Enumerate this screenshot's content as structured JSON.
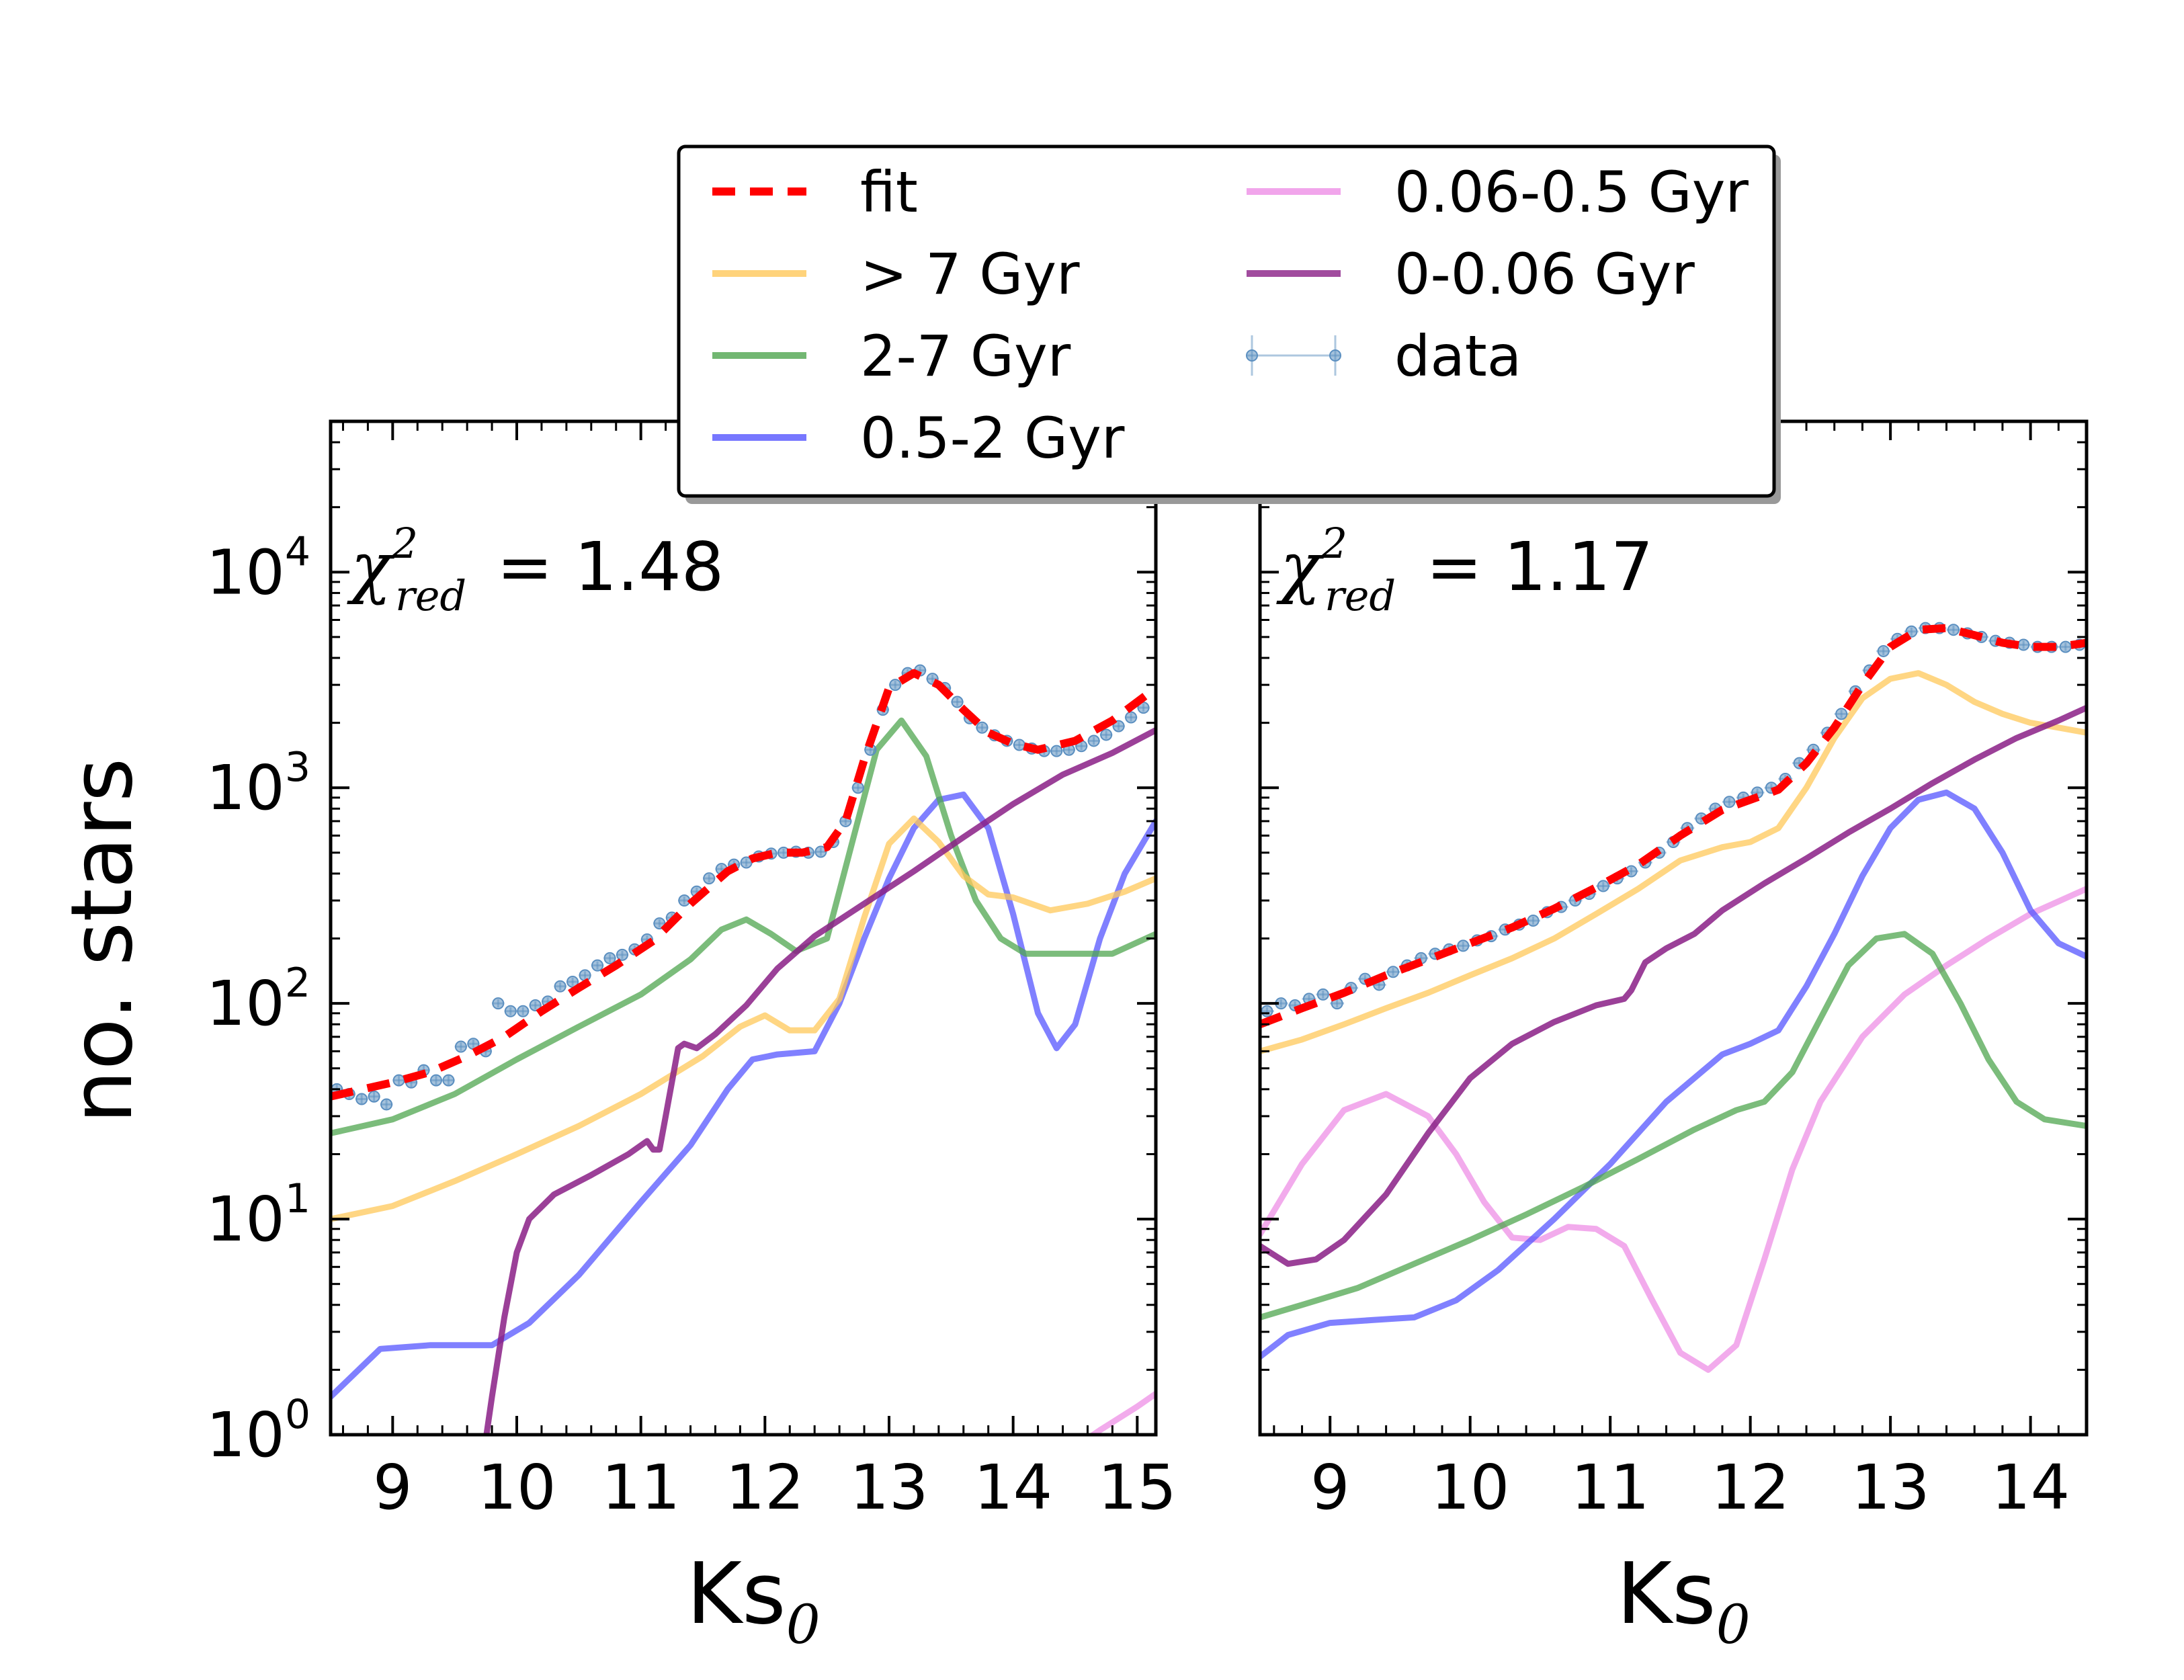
{
  "figure": {
    "ylabel": "no. stars",
    "legend_placement": "top-center, overlapping both panels"
  },
  "legend": [
    {
      "key": "fit",
      "label": "fit",
      "color": "#ff0000",
      "style": "dashed"
    },
    {
      "key": "gt7",
      "label": "> 7 Gyr",
      "color": "#ffc85a",
      "style": "solid"
    },
    {
      "key": "g2_7",
      "label": "2-7 Gyr",
      "color": "#4fa54f",
      "style": "solid"
    },
    {
      "key": "g05_2",
      "label": "0.5-2 Gyr",
      "color": "#5555ff",
      "style": "solid"
    },
    {
      "key": "g006_05",
      "label": "0.06-0.5 Gyr",
      "color": "#ee8fe6",
      "style": "solid"
    },
    {
      "key": "g0_006",
      "label": "0-0.06 Gyr",
      "color": "#8a1f86",
      "style": "solid"
    },
    {
      "key": "data",
      "label": "data",
      "color": "#5b8fc0",
      "style": "errorbar"
    }
  ],
  "chart_data": [
    {
      "type": "line",
      "panel": "left",
      "xlabel": "Ks",
      "xlabel_sub": "0",
      "ylabel": "no. stars",
      "yscale": "log",
      "xlim": [
        8.5,
        15.15
      ],
      "ylim": [
        1,
        50000
      ],
      "xticks": [
        9,
        10,
        11,
        12,
        13,
        14,
        15
      ],
      "yticks": [
        {
          "value": 1,
          "base": "10",
          "exp": "0"
        },
        {
          "value": 10,
          "base": "10",
          "exp": "1"
        },
        {
          "value": 100,
          "base": "10",
          "exp": "2"
        },
        {
          "value": 1000,
          "base": "10",
          "exp": "3"
        },
        {
          "value": 10000,
          "base": "10",
          "exp": "4"
        }
      ],
      "annotation": {
        "symbol": "χ",
        "sup": "2",
        "sub": "red",
        "text": "=  1.48"
      },
      "series": [
        {
          "key": "fit",
          "x": [
            8.5,
            9.0,
            9.3,
            9.6,
            9.9,
            10.2,
            10.5,
            10.8,
            11.1,
            11.4,
            11.7,
            11.9,
            12.1,
            12.3,
            12.5,
            12.65,
            12.8,
            13.0,
            13.2,
            13.4,
            13.6,
            13.8,
            14.0,
            14.2,
            14.5,
            14.8,
            15.15
          ],
          "y": [
            37,
            43,
            48,
            57,
            70,
            92,
            118,
            150,
            195,
            290,
            410,
            470,
            500,
            500,
            530,
            700,
            1350,
            2900,
            3400,
            3000,
            2300,
            1800,
            1600,
            1500,
            1650,
            2050,
            2900
          ]
        },
        {
          "key": "gt7",
          "x": [
            8.5,
            9.0,
            9.5,
            10.0,
            10.5,
            11.0,
            11.5,
            11.8,
            12.0,
            12.2,
            12.4,
            12.6,
            12.8,
            13.0,
            13.2,
            13.4,
            13.6,
            13.8,
            14.0,
            14.3,
            14.6,
            14.9,
            15.15
          ],
          "y": [
            10,
            11.5,
            15,
            20,
            27,
            38,
            57,
            78,
            88,
            75,
            75,
            105,
            250,
            550,
            720,
            560,
            390,
            320,
            310,
            270,
            290,
            330,
            380
          ]
        },
        {
          "key": "g2_7",
          "x": [
            8.5,
            9.0,
            9.5,
            10.0,
            10.5,
            11.0,
            11.4,
            11.65,
            11.85,
            12.05,
            12.25,
            12.5,
            12.7,
            12.9,
            13.1,
            13.3,
            13.5,
            13.7,
            13.9,
            14.1,
            14.4,
            14.8,
            15.15
          ],
          "y": [
            25,
            29,
            38,
            55,
            78,
            110,
            160,
            220,
            245,
            210,
            175,
            200,
            550,
            1500,
            2050,
            1400,
            600,
            300,
            200,
            170,
            170,
            170,
            210
          ]
        },
        {
          "key": "g05_2",
          "x": [
            8.5,
            8.9,
            9.3,
            9.8,
            10.1,
            10.5,
            11.0,
            11.4,
            11.7,
            11.9,
            12.1,
            12.4,
            12.6,
            12.8,
            13.0,
            13.2,
            13.4,
            13.6,
            13.8,
            14.0,
            14.2,
            14.35,
            14.5,
            14.7,
            14.9,
            15.15
          ],
          "y": [
            1.5,
            2.5,
            2.6,
            2.6,
            3.3,
            5.5,
            12,
            22,
            40,
            55,
            58,
            60,
            100,
            200,
            380,
            650,
            880,
            930,
            650,
            260,
            90,
            62,
            80,
            200,
            400,
            700
          ]
        },
        {
          "key": "g006_05",
          "x": [
            14.4,
            14.7,
            15.0,
            15.15
          ],
          "y": [
            0.8,
            1.05,
            1.35,
            1.55
          ]
        },
        {
          "key": "g0_006",
          "x": [
            9.7,
            9.8,
            9.9,
            10.0,
            10.1,
            10.3,
            10.6,
            10.9,
            11.05,
            11.1,
            11.15,
            11.2,
            11.3,
            11.35,
            11.45,
            11.6,
            11.85,
            12.1,
            12.4,
            12.8,
            13.2,
            13.6,
            14.0,
            14.4,
            14.8,
            15.15
          ],
          "y": [
            0.6,
            1.5,
            3.5,
            7,
            10,
            13,
            16,
            20,
            23,
            21,
            21,
            30,
            62,
            65,
            62,
            72,
            98,
            145,
            205,
            290,
            410,
            590,
            840,
            1150,
            1450,
            1850
          ]
        },
        {
          "key": "data",
          "x": [
            8.55,
            8.65,
            8.75,
            8.85,
            8.95,
            9.05,
            9.15,
            9.25,
            9.35,
            9.45,
            9.55,
            9.65,
            9.75,
            9.85,
            9.95,
            10.05,
            10.15,
            10.25,
            10.35,
            10.45,
            10.55,
            10.65,
            10.75,
            10.85,
            10.95,
            11.05,
            11.15,
            11.25,
            11.35,
            11.45,
            11.55,
            11.65,
            11.75,
            11.85,
            11.95,
            12.05,
            12.15,
            12.25,
            12.35,
            12.45,
            12.55,
            12.65,
            12.75,
            12.85,
            12.95,
            13.05,
            13.15,
            13.25,
            13.35,
            13.45,
            13.55,
            13.65,
            13.75,
            13.85,
            13.95,
            14.05,
            14.15,
            14.25,
            14.35,
            14.45,
            14.55,
            14.65,
            14.75,
            14.85,
            14.95,
            15.05
          ],
          "y": [
            40,
            38,
            36,
            37,
            34,
            44,
            43,
            49,
            44,
            44,
            63,
            65,
            60,
            100,
            92,
            92,
            98,
            102,
            120,
            126,
            135,
            150,
            162,
            168,
            178,
            198,
            235,
            250,
            300,
            330,
            380,
            420,
            440,
            450,
            480,
            495,
            500,
            505,
            500,
            505,
            560,
            700,
            1000,
            1500,
            2300,
            3000,
            3400,
            3500,
            3200,
            2900,
            2500,
            2100,
            1900,
            1750,
            1650,
            1580,
            1520,
            1480,
            1480,
            1500,
            1560,
            1650,
            1760,
            1930,
            2120,
            2350
          ]
        }
      ]
    },
    {
      "type": "line",
      "panel": "right",
      "xlabel": "Ks",
      "xlabel_sub": "0",
      "yscale": "log",
      "xlim": [
        8.5,
        14.4
      ],
      "ylim": [
        1,
        50000
      ],
      "xticks": [
        9,
        10,
        11,
        12,
        13,
        14
      ],
      "annotation": {
        "symbol": "χ",
        "sup": "2",
        "sub": "red",
        "text": "=  1.17"
      },
      "series": [
        {
          "key": "fit",
          "x": [
            8.5,
            8.8,
            9.1,
            9.4,
            9.7,
            10.0,
            10.3,
            10.6,
            10.9,
            11.2,
            11.5,
            11.8,
            12.0,
            12.2,
            12.4,
            12.6,
            12.8,
            13.0,
            13.2,
            13.4,
            13.6,
            13.8,
            14.0,
            14.2,
            14.4
          ],
          "y": [
            80,
            95,
            112,
            135,
            160,
            190,
            225,
            275,
            345,
            440,
            600,
            790,
            880,
            980,
            1300,
            1900,
            3000,
            4500,
            5400,
            5500,
            5100,
            4700,
            4500,
            4500,
            4700
          ]
        },
        {
          "key": "gt7",
          "x": [
            8.5,
            8.8,
            9.1,
            9.4,
            9.7,
            10.0,
            10.3,
            10.6,
            10.9,
            11.2,
            11.5,
            11.8,
            12.0,
            12.2,
            12.4,
            12.6,
            12.8,
            13.0,
            13.2,
            13.4,
            13.6,
            13.8,
            14.0,
            14.2,
            14.4
          ],
          "y": [
            60,
            68,
            80,
            95,
            112,
            135,
            162,
            200,
            260,
            340,
            460,
            530,
            560,
            650,
            1000,
            1700,
            2600,
            3200,
            3400,
            3000,
            2500,
            2200,
            2000,
            1900,
            1800
          ]
        },
        {
          "key": "g2_7",
          "x": [
            8.5,
            8.8,
            9.2,
            9.6,
            10.0,
            10.4,
            10.8,
            11.2,
            11.6,
            11.9,
            12.1,
            12.3,
            12.5,
            12.7,
            12.9,
            13.1,
            13.3,
            13.5,
            13.7,
            13.9,
            14.1,
            14.4
          ],
          "y": [
            3.5,
            4.0,
            4.8,
            6.2,
            8.0,
            10.5,
            14,
            19,
            26,
            32,
            35,
            48,
            85,
            150,
            200,
            210,
            170,
            100,
            55,
            35,
            29,
            27
          ]
        },
        {
          "key": "g05_2",
          "x": [
            8.5,
            8.7,
            9.0,
            9.3,
            9.6,
            9.9,
            10.2,
            10.6,
            11.0,
            11.4,
            11.8,
            12.0,
            12.2,
            12.4,
            12.6,
            12.8,
            13.0,
            13.2,
            13.4,
            13.6,
            13.8,
            14.0,
            14.2,
            14.4
          ],
          "y": [
            2.3,
            2.9,
            3.3,
            3.4,
            3.5,
            4.2,
            5.8,
            10,
            18,
            35,
            58,
            65,
            75,
            120,
            210,
            390,
            650,
            880,
            950,
            800,
            500,
            270,
            190,
            165
          ]
        },
        {
          "key": "g006_05",
          "x": [
            8.5,
            8.8,
            9.1,
            9.4,
            9.7,
            9.9,
            10.1,
            10.3,
            10.5,
            10.7,
            10.9,
            11.1,
            11.3,
            11.5,
            11.7,
            11.9,
            12.1,
            12.3,
            12.5,
            12.8,
            13.1,
            13.4,
            13.7,
            14.0,
            14.4
          ],
          "y": [
            8.5,
            18,
            32,
            38,
            30,
            20,
            12,
            8.2,
            8.0,
            9.2,
            9.0,
            7.5,
            4.2,
            2.4,
            2.0,
            2.6,
            6.5,
            17,
            35,
            70,
            110,
            150,
            200,
            260,
            340
          ]
        },
        {
          "key": "g0_006",
          "x": [
            8.5,
            8.7,
            8.9,
            9.1,
            9.4,
            9.7,
            10.0,
            10.3,
            10.6,
            10.9,
            11.1,
            11.15,
            11.25,
            11.4,
            11.6,
            11.8,
            12.1,
            12.4,
            12.7,
            13.0,
            13.3,
            13.6,
            13.9,
            14.2,
            14.4
          ],
          "y": [
            7.5,
            6.2,
            6.5,
            8.0,
            13,
            25,
            45,
            65,
            82,
            98,
            105,
            115,
            155,
            180,
            210,
            270,
            360,
            470,
            620,
            800,
            1050,
            1350,
            1700,
            2050,
            2350
          ]
        },
        {
          "key": "data",
          "x": [
            8.55,
            8.65,
            8.75,
            8.85,
            8.95,
            9.05,
            9.15,
            9.25,
            9.35,
            9.45,
            9.55,
            9.65,
            9.75,
            9.85,
            9.95,
            10.05,
            10.15,
            10.25,
            10.35,
            10.45,
            10.55,
            10.65,
            10.75,
            10.85,
            10.95,
            11.05,
            11.15,
            11.25,
            11.35,
            11.45,
            11.55,
            11.65,
            11.75,
            11.85,
            11.95,
            12.05,
            12.15,
            12.25,
            12.35,
            12.45,
            12.55,
            12.65,
            12.75,
            12.85,
            12.95,
            13.05,
            13.15,
            13.25,
            13.35,
            13.45,
            13.55,
            13.65,
            13.75,
            13.85,
            13.95,
            14.05,
            14.15,
            14.25,
            14.35
          ],
          "y": [
            92,
            100,
            98,
            105,
            110,
            100,
            118,
            130,
            122,
            140,
            150,
            162,
            170,
            178,
            185,
            196,
            205,
            220,
            232,
            242,
            265,
            280,
            300,
            322,
            350,
            380,
            410,
            450,
            500,
            560,
            650,
            720,
            800,
            860,
            900,
            950,
            1000,
            1100,
            1300,
            1500,
            1800,
            2200,
            2800,
            3500,
            4300,
            4900,
            5300,
            5500,
            5500,
            5400,
            5200,
            5000,
            4800,
            4700,
            4600,
            4500,
            4500,
            4500,
            4600
          ]
        }
      ]
    }
  ]
}
